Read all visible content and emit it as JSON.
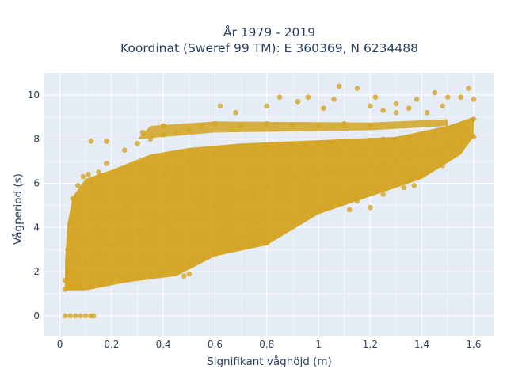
{
  "chart_data": {
    "type": "scatter",
    "title_line1": "År 1979 - 2019",
    "title_line2": "Koordinat (Sweref 99 TM): E 360369, N 6234488",
    "xlabel": "Signifikant våghöjd (m)",
    "ylabel": "Vågperiod (s)",
    "xlim": [
      -0.06,
      1.68
    ],
    "ylim": [
      -0.9,
      11.0
    ],
    "grid": true,
    "legend": "none",
    "colors": {
      "marker": "#d4a421",
      "plot_bg": "#e5ecf6",
      "grid": "#ffffff",
      "text": "#2a3f5f"
    },
    "x_ticks": [
      {
        "value": 0,
        "label": "0"
      },
      {
        "value": 0.2,
        "label": "0,2"
      },
      {
        "value": 0.4,
        "label": "0,4"
      },
      {
        "value": 0.6,
        "label": "0,6"
      },
      {
        "value": 0.8,
        "label": "0,8"
      },
      {
        "value": 1.0,
        "label": "1"
      },
      {
        "value": 1.2,
        "label": "1,2"
      },
      {
        "value": 1.4,
        "label": "1,4"
      },
      {
        "value": 1.6,
        "label": "1,6"
      }
    ],
    "y_ticks": [
      {
        "value": 0,
        "label": "0"
      },
      {
        "value": 2,
        "label": "2"
      },
      {
        "value": 4,
        "label": "4"
      },
      {
        "value": 6,
        "label": "6"
      },
      {
        "value": 8,
        "label": "8"
      },
      {
        "value": 10,
        "label": "10"
      }
    ],
    "points": [
      [
        0.02,
        0.0
      ],
      [
        0.04,
        0.0
      ],
      [
        0.06,
        0.0
      ],
      [
        0.08,
        0.0
      ],
      [
        0.1,
        0.0
      ],
      [
        0.12,
        0.0
      ],
      [
        0.13,
        0.0
      ],
      [
        0.02,
        1.2
      ],
      [
        0.03,
        1.4
      ],
      [
        0.02,
        1.6
      ],
      [
        0.03,
        2.0
      ],
      [
        0.04,
        2.5
      ],
      [
        0.03,
        3.0
      ],
      [
        0.05,
        3.5
      ],
      [
        0.04,
        4.2
      ],
      [
        0.06,
        4.8
      ],
      [
        0.05,
        5.3
      ],
      [
        0.07,
        5.9
      ],
      [
        0.09,
        6.3
      ],
      [
        0.11,
        6.4
      ],
      [
        0.12,
        6.0
      ],
      [
        0.05,
        1.3
      ],
      [
        0.08,
        1.3
      ],
      [
        0.12,
        1.4
      ],
      [
        0.16,
        1.5
      ],
      [
        0.2,
        1.6
      ],
      [
        0.25,
        1.7
      ],
      [
        0.3,
        1.8
      ],
      [
        0.35,
        1.85
      ],
      [
        0.4,
        2.0
      ],
      [
        0.45,
        2.2
      ],
      [
        0.5,
        2.4
      ],
      [
        0.55,
        2.6
      ],
      [
        0.6,
        2.8
      ],
      [
        0.65,
        3.0
      ],
      [
        0.7,
        3.1
      ],
      [
        0.75,
        3.2
      ],
      [
        0.8,
        3.3
      ],
      [
        0.05,
        2.0
      ],
      [
        0.1,
        2.4
      ],
      [
        0.15,
        2.8
      ],
      [
        0.2,
        3.2
      ],
      [
        0.25,
        3.5
      ],
      [
        0.3,
        3.8
      ],
      [
        0.35,
        4.0
      ],
      [
        0.4,
        4.2
      ],
      [
        0.45,
        4.4
      ],
      [
        0.5,
        4.6
      ],
      [
        0.55,
        4.8
      ],
      [
        0.6,
        5.0
      ],
      [
        0.65,
        5.2
      ],
      [
        0.7,
        5.4
      ],
      [
        0.75,
        5.6
      ],
      [
        0.8,
        5.8
      ],
      [
        0.85,
        6.0
      ],
      [
        0.9,
        6.2
      ],
      [
        0.95,
        6.3
      ],
      [
        1.0,
        6.4
      ],
      [
        1.05,
        6.5
      ],
      [
        1.1,
        6.6
      ],
      [
        1.15,
        6.7
      ],
      [
        1.2,
        6.8
      ],
      [
        1.25,
        6.9
      ],
      [
        1.3,
        7.0
      ],
      [
        1.35,
        7.1
      ],
      [
        1.4,
        7.3
      ],
      [
        1.45,
        7.5
      ],
      [
        1.5,
        7.7
      ],
      [
        1.55,
        7.9
      ],
      [
        1.6,
        8.1
      ],
      [
        0.1,
        3.5
      ],
      [
        0.15,
        4.0
      ],
      [
        0.2,
        4.5
      ],
      [
        0.25,
        5.0
      ],
      [
        0.3,
        5.5
      ],
      [
        0.35,
        6.0
      ],
      [
        0.4,
        6.4
      ],
      [
        0.45,
        6.7
      ],
      [
        0.5,
        7.0
      ],
      [
        0.55,
        7.2
      ],
      [
        0.6,
        7.3
      ],
      [
        0.65,
        7.4
      ],
      [
        0.7,
        7.5
      ],
      [
        0.75,
        7.6
      ],
      [
        0.8,
        7.65
      ],
      [
        0.85,
        7.7
      ],
      [
        0.9,
        7.75
      ],
      [
        0.95,
        7.8
      ],
      [
        1.0,
        7.8
      ],
      [
        1.05,
        7.85
      ],
      [
        1.1,
        7.9
      ],
      [
        1.15,
        7.9
      ],
      [
        1.2,
        7.95
      ],
      [
        1.25,
        8.0
      ],
      [
        1.3,
        8.0
      ],
      [
        1.35,
        8.1
      ],
      [
        1.4,
        8.2
      ],
      [
        1.45,
        8.3
      ],
      [
        1.5,
        8.4
      ],
      [
        1.55,
        8.6
      ],
      [
        1.6,
        8.9
      ],
      [
        0.3,
        7.8
      ],
      [
        0.35,
        8.0
      ],
      [
        0.4,
        8.2
      ],
      [
        0.45,
        8.3
      ],
      [
        0.5,
        8.4
      ],
      [
        0.55,
        8.6
      ],
      [
        0.6,
        8.7
      ],
      [
        0.7,
        8.6
      ],
      [
        0.8,
        8.7
      ],
      [
        0.9,
        8.6
      ],
      [
        1.0,
        8.6
      ],
      [
        1.1,
        8.7
      ],
      [
        1.2,
        8.6
      ],
      [
        0.4,
        8.6
      ],
      [
        0.62,
        9.5
      ],
      [
        0.68,
        9.2
      ],
      [
        0.8,
        9.5
      ],
      [
        0.85,
        9.9
      ],
      [
        0.92,
        9.7
      ],
      [
        0.96,
        9.9
      ],
      [
        1.02,
        9.4
      ],
      [
        1.06,
        9.8
      ],
      [
        1.08,
        10.4
      ],
      [
        1.15,
        10.3
      ],
      [
        1.2,
        9.5
      ],
      [
        1.25,
        9.3
      ],
      [
        1.3,
        9.2
      ],
      [
        1.35,
        9.4
      ],
      [
        1.42,
        9.2
      ],
      [
        1.48,
        9.5
      ],
      [
        1.5,
        9.9
      ],
      [
        1.55,
        9.9
      ],
      [
        1.58,
        10.3
      ],
      [
        1.6,
        9.8
      ],
      [
        1.45,
        10.1
      ],
      [
        1.22,
        9.9
      ],
      [
        1.3,
        9.6
      ],
      [
        1.38,
        9.8
      ],
      [
        0.18,
        7.9
      ],
      [
        0.32,
        8.3
      ],
      [
        0.4,
        8.6
      ],
      [
        0.25,
        7.5
      ],
      [
        0.45,
        6.0
      ],
      [
        0.55,
        5.5
      ],
      [
        0.65,
        4.0
      ],
      [
        0.7,
        4.5
      ],
      [
        0.75,
        4.2
      ],
      [
        0.85,
        4.5
      ],
      [
        0.9,
        4.3
      ],
      [
        0.95,
        4.8
      ],
      [
        1.0,
        4.9
      ],
      [
        1.05,
        5.0
      ],
      [
        1.1,
        5.5
      ],
      [
        1.15,
        5.2
      ],
      [
        1.2,
        5.8
      ],
      [
        1.25,
        5.5
      ],
      [
        1.3,
        6.0
      ],
      [
        1.35,
        6.2
      ],
      [
        1.4,
        6.4
      ],
      [
        1.2,
        4.9
      ],
      [
        1.12,
        4.8
      ],
      [
        1.08,
        5.1
      ],
      [
        1.33,
        5.8
      ],
      [
        1.37,
        5.9
      ],
      [
        1.42,
        6.5
      ],
      [
        1.48,
        6.8
      ],
      [
        0.5,
        1.9
      ],
      [
        0.48,
        1.8
      ],
      [
        0.15,
        6.5
      ],
      [
        0.18,
        6.9
      ],
      [
        0.12,
        7.9
      ],
      [
        0.6,
        3.1
      ],
      [
        0.7,
        3.4
      ]
    ]
  }
}
